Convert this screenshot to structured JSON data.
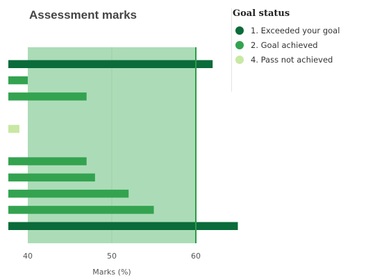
{
  "chart_data": {
    "type": "bar",
    "orientation": "horizontal",
    "title": "Assessment marks",
    "xlabel": "Marks (%)",
    "ylabel": "",
    "xlim": [
      35,
      65
    ],
    "xticks": [
      40,
      50,
      60
    ],
    "goal_band": [
      40,
      60
    ],
    "goal_line": 60,
    "colors": {
      "exceeded": "#0b6b3a",
      "achieved": "#33a350",
      "not_achieved": "#c8e8a3",
      "band": "#acdcb7",
      "goal_line": "#2c9a48"
    },
    "legend_placement": "top-right",
    "legend": {
      "title": "Goal status",
      "items": [
        {
          "label": "1. Exceeded your goal",
          "color": "#0b6b3a"
        },
        {
          "label": "2. Goal achieved",
          "color": "#33a350"
        },
        {
          "label": "4. Pass not achieved",
          "color": "#c8e8a3"
        }
      ]
    },
    "bars": [
      {
        "value": 62,
        "status": "exceeded"
      },
      {
        "value": 40,
        "status": "achieved"
      },
      {
        "value": 47,
        "status": "achieved"
      },
      {
        "value": null,
        "status": "none"
      },
      {
        "value": 39,
        "status": "not_achieved"
      },
      {
        "value": null,
        "status": "none"
      },
      {
        "value": 47,
        "status": "achieved"
      },
      {
        "value": 48,
        "status": "achieved"
      },
      {
        "value": 52,
        "status": "achieved"
      },
      {
        "value": 55,
        "status": "achieved"
      },
      {
        "value": 65,
        "status": "exceeded"
      }
    ]
  }
}
